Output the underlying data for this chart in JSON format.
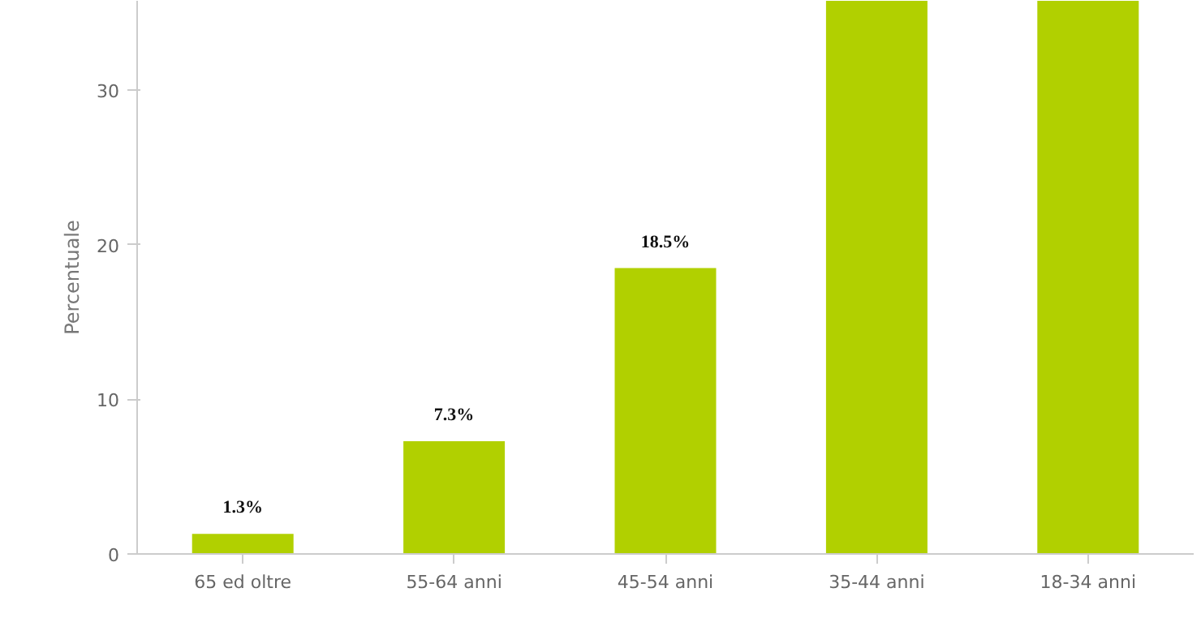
{
  "chart_data": {
    "type": "bar",
    "ylabel": "Percentuale",
    "categories": [
      "65 ed oltre",
      "55-64 anni",
      "45-54 anni",
      "35-44 anni",
      "18-34 anni"
    ],
    "values": [
      1.3,
      7.3,
      18.5,
      35.8,
      35.8
    ],
    "value_labels": [
      "1.3%",
      "7.3%",
      "18.5%",
      null,
      null
    ],
    "color": "#b1d000",
    "ylim": [
      0,
      35.8
    ],
    "yticks": [
      0,
      10,
      20,
      30
    ],
    "grid": false
  }
}
